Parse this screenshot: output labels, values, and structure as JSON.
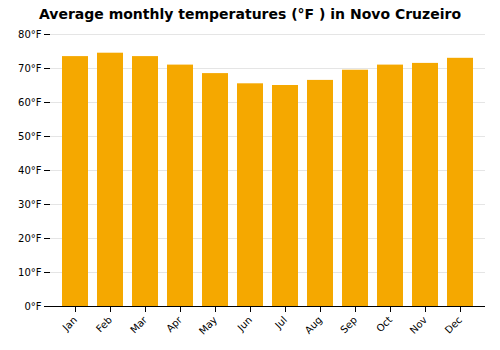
{
  "chart_data": {
    "type": "bar",
    "title": "Average monthly temperatures (°F ) in Novo Cruzeiro",
    "categories": [
      "Jan",
      "Feb",
      "Mar",
      "Apr",
      "May",
      "Jun",
      "Jul",
      "Aug",
      "Sep",
      "Oct",
      "Nov",
      "Dec"
    ],
    "values": [
      73.5,
      74.5,
      73.5,
      71.0,
      68.5,
      65.5,
      65.0,
      66.5,
      69.5,
      71.0,
      71.5,
      73.0
    ],
    "color": "#F5A800",
    "ylim": [
      0,
      80
    ],
    "yticks": [
      {
        "value": 0,
        "label": "0°F"
      },
      {
        "value": 10,
        "label": "10°F"
      },
      {
        "value": 20,
        "label": "20°F"
      },
      {
        "value": 30,
        "label": "30°F"
      },
      {
        "value": 40,
        "label": "40°F"
      },
      {
        "value": 50,
        "label": "50°F"
      },
      {
        "value": 60,
        "label": "60°F"
      },
      {
        "value": 70,
        "label": "70°F"
      },
      {
        "value": 80,
        "label": "80°F"
      }
    ],
    "grid": true
  }
}
